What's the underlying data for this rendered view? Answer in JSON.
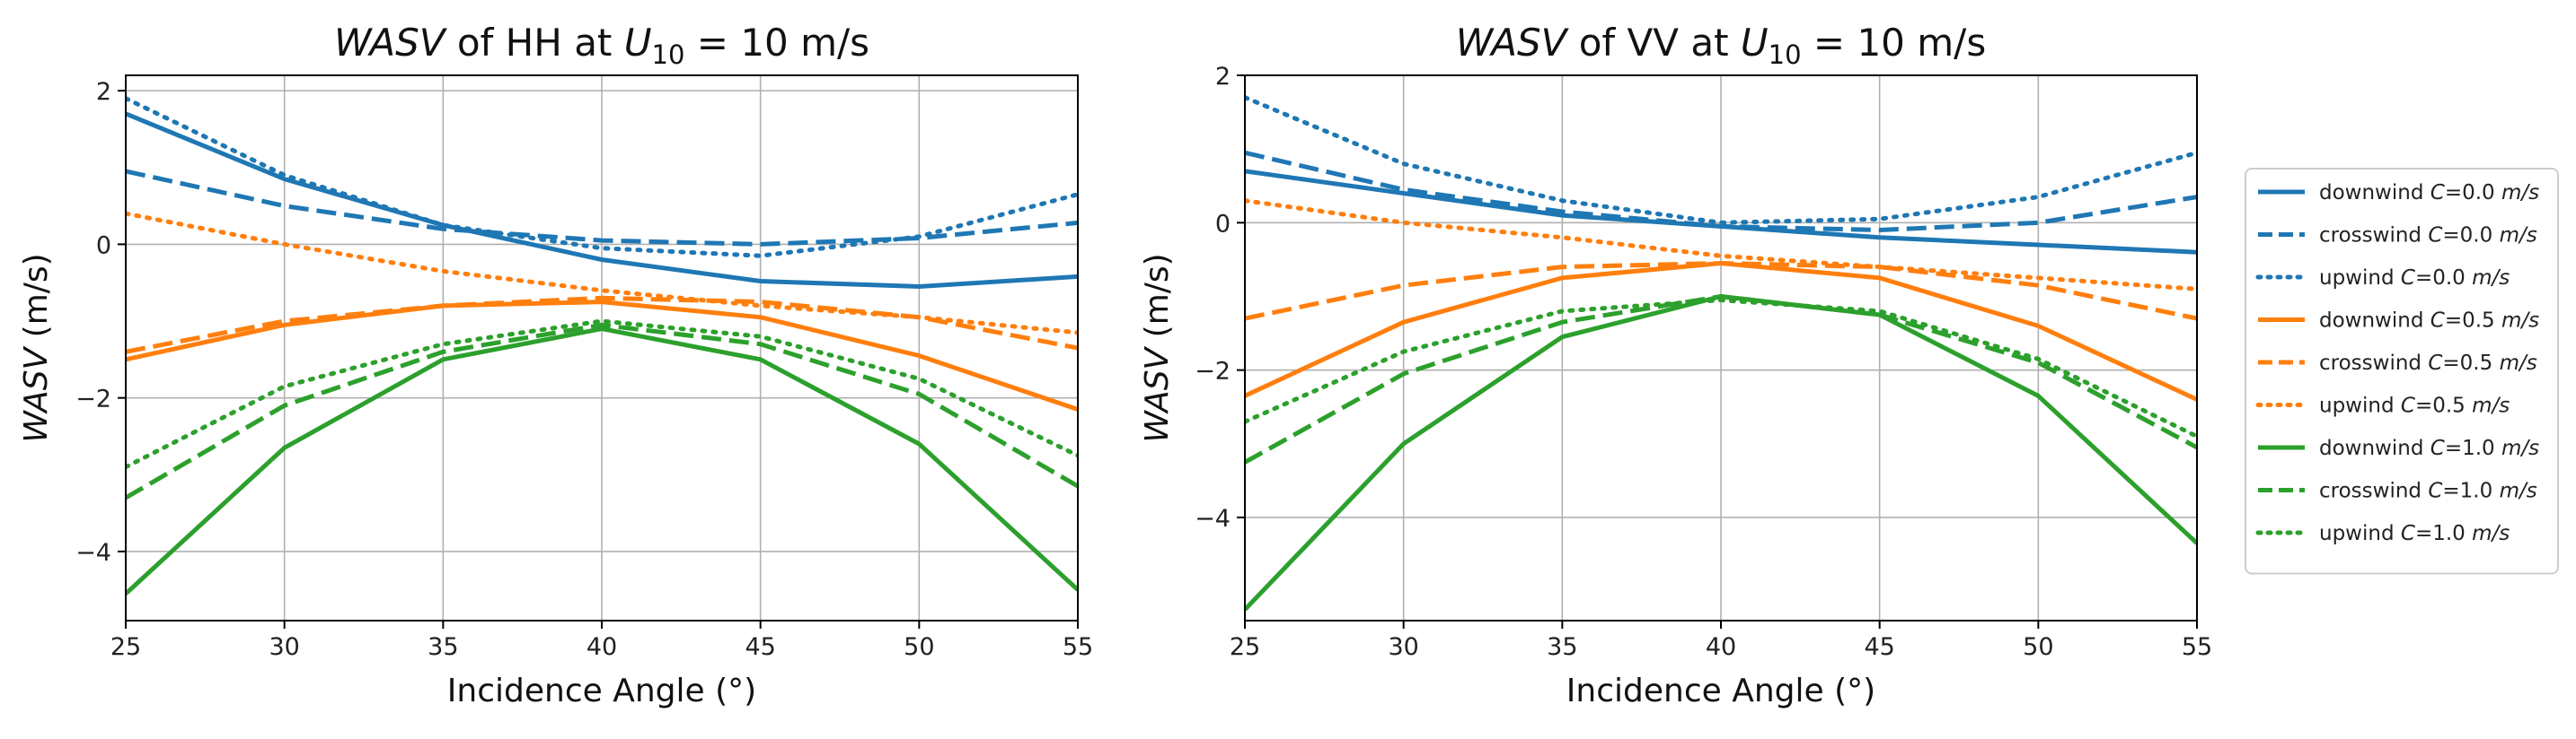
{
  "chart_data": [
    {
      "type": "line",
      "title": {
        "italic": "WASV",
        "rest": " of HH at ",
        "var": "U",
        "sub": "10",
        "tail": " = 10 m/s"
      },
      "xlabel": "Incidence Angle (°)",
      "ylabel": {
        "italic": "WASV",
        "rest": " (m/s)"
      },
      "xlim": [
        25,
        55
      ],
      "ylim": [
        -4.9,
        2.2
      ],
      "xticks": [
        25,
        30,
        35,
        40,
        45,
        50,
        55
      ],
      "yticks": [
        -4,
        -2,
        0,
        2
      ],
      "ytick_labels": [
        "−4",
        "−2",
        "0",
        "2"
      ],
      "x": [
        25,
        30,
        35,
        40,
        45,
        50,
        55
      ],
      "grid": true,
      "series": [
        {
          "name": "downwind C=0.0 m/s",
          "color": "#1f77b4",
          "style": "solid",
          "values": [
            1.7,
            0.85,
            0.25,
            -0.2,
            -0.48,
            -0.55,
            -0.42
          ]
        },
        {
          "name": "crosswind C=0.0 m/s",
          "color": "#1f77b4",
          "style": "dashed",
          "values": [
            0.95,
            0.5,
            0.2,
            0.05,
            0.0,
            0.08,
            0.28
          ]
        },
        {
          "name": "upwind C=0.0 m/s",
          "color": "#1f77b4",
          "style": "dotted",
          "values": [
            1.9,
            0.9,
            0.25,
            -0.05,
            -0.15,
            0.1,
            0.65
          ]
        },
        {
          "name": "downwind C=0.5 m/s",
          "color": "#ff7f0e",
          "style": "solid",
          "values": [
            -1.5,
            -1.05,
            -0.8,
            -0.75,
            -0.95,
            -1.45,
            -2.15
          ]
        },
        {
          "name": "crosswind C=0.5 m/s",
          "color": "#ff7f0e",
          "style": "dashed",
          "values": [
            -1.4,
            -1.0,
            -0.8,
            -0.7,
            -0.75,
            -0.95,
            -1.35
          ]
        },
        {
          "name": "upwind C=0.5 m/s",
          "color": "#ff7f0e",
          "style": "dotted",
          "values": [
            0.4,
            0.0,
            -0.35,
            -0.6,
            -0.8,
            -0.95,
            -1.15
          ]
        },
        {
          "name": "downwind C=1.0 m/s",
          "color": "#2ca02c",
          "style": "solid",
          "values": [
            -4.55,
            -2.65,
            -1.5,
            -1.1,
            -1.5,
            -2.6,
            -4.5
          ]
        },
        {
          "name": "crosswind C=1.0 m/s",
          "color": "#2ca02c",
          "style": "dashed",
          "values": [
            -3.3,
            -2.1,
            -1.4,
            -1.05,
            -1.3,
            -1.95,
            -3.15
          ]
        },
        {
          "name": "upwind C=1.0 m/s",
          "color": "#2ca02c",
          "style": "dotted",
          "values": [
            -2.9,
            -1.85,
            -1.3,
            -1.0,
            -1.2,
            -1.75,
            -2.75
          ]
        }
      ]
    },
    {
      "type": "line",
      "title": {
        "italic": "WASV",
        "rest": " of VV at ",
        "var": "U",
        "sub": "10",
        "tail": " = 10 m/s"
      },
      "xlabel": "Incidence Angle (°)",
      "ylabel": {
        "italic": "WASV",
        "rest": " (m/s)"
      },
      "xlim": [
        25,
        55
      ],
      "ylim": [
        -5.4,
        2.0
      ],
      "xticks": [
        25,
        30,
        35,
        40,
        45,
        50,
        55
      ],
      "yticks": [
        -4,
        -2,
        0,
        2
      ],
      "ytick_labels": [
        "−4",
        "−2",
        "0",
        "2"
      ],
      "x": [
        25,
        30,
        35,
        40,
        45,
        50,
        55
      ],
      "grid": true,
      "series": [
        {
          "name": "downwind C=0.0 m/s",
          "color": "#1f77b4",
          "style": "solid",
          "values": [
            0.7,
            0.4,
            0.1,
            -0.05,
            -0.2,
            -0.3,
            -0.4
          ]
        },
        {
          "name": "crosswind C=0.0 m/s",
          "color": "#1f77b4",
          "style": "dashed",
          "values": [
            0.95,
            0.45,
            0.15,
            -0.05,
            -0.1,
            0.0,
            0.35
          ]
        },
        {
          "name": "upwind C=0.0 m/s",
          "color": "#1f77b4",
          "style": "dotted",
          "values": [
            1.7,
            0.8,
            0.3,
            0.0,
            0.05,
            0.35,
            0.95
          ]
        },
        {
          "name": "downwind C=0.5 m/s",
          "color": "#ff7f0e",
          "style": "solid",
          "values": [
            -2.35,
            -1.35,
            -0.75,
            -0.55,
            -0.75,
            -1.4,
            -2.4
          ]
        },
        {
          "name": "crosswind C=0.5 m/s",
          "color": "#ff7f0e",
          "style": "dashed",
          "values": [
            -1.3,
            -0.85,
            -0.6,
            -0.55,
            -0.6,
            -0.85,
            -1.3
          ]
        },
        {
          "name": "upwind C=0.5 m/s",
          "color": "#ff7f0e",
          "style": "dotted",
          "values": [
            0.3,
            0.0,
            -0.2,
            -0.45,
            -0.6,
            -0.75,
            -0.9
          ]
        },
        {
          "name": "downwind C=1.0 m/s",
          "color": "#2ca02c",
          "style": "solid",
          "values": [
            -5.25,
            -3.0,
            -1.55,
            -1.0,
            -1.25,
            -2.35,
            -4.35
          ]
        },
        {
          "name": "crosswind C=1.0 m/s",
          "color": "#2ca02c",
          "style": "dashed",
          "values": [
            -3.25,
            -2.05,
            -1.35,
            -1.0,
            -1.25,
            -1.9,
            -3.05
          ]
        },
        {
          "name": "upwind C=1.0 m/s",
          "color": "#2ca02c",
          "style": "dotted",
          "values": [
            -2.7,
            -1.75,
            -1.2,
            -1.05,
            -1.2,
            -1.85,
            -2.9
          ]
        }
      ]
    }
  ],
  "legend": {
    "placement": "right",
    "entries": [
      {
        "prefix": "downwind ",
        "c": "C",
        "eq": "=0.0 ",
        "unit": "m/s",
        "color": "#1f77b4",
        "style": "solid"
      },
      {
        "prefix": "crosswind ",
        "c": "C",
        "eq": "=0.0 ",
        "unit": "m/s",
        "color": "#1f77b4",
        "style": "dashed"
      },
      {
        "prefix": "upwind ",
        "c": "C",
        "eq": "=0.0 ",
        "unit": "m/s",
        "color": "#1f77b4",
        "style": "dotted"
      },
      {
        "prefix": "downwind ",
        "c": "C",
        "eq": "=0.5 ",
        "unit": "m/s",
        "color": "#ff7f0e",
        "style": "solid"
      },
      {
        "prefix": "crosswind ",
        "c": "C",
        "eq": "=0.5 ",
        "unit": "m/s",
        "color": "#ff7f0e",
        "style": "dashed"
      },
      {
        "prefix": "upwind ",
        "c": "C",
        "eq": "=0.5 ",
        "unit": "m/s",
        "color": "#ff7f0e",
        "style": "dotted"
      },
      {
        "prefix": "downwind ",
        "c": "C",
        "eq": "=1.0 ",
        "unit": "m/s",
        "color": "#2ca02c",
        "style": "solid"
      },
      {
        "prefix": "crosswind ",
        "c": "C",
        "eq": "=1.0 ",
        "unit": "m/s",
        "color": "#2ca02c",
        "style": "dashed"
      },
      {
        "prefix": "upwind ",
        "c": "C",
        "eq": "=1.0 ",
        "unit": "m/s",
        "color": "#2ca02c",
        "style": "dotted"
      }
    ]
  }
}
